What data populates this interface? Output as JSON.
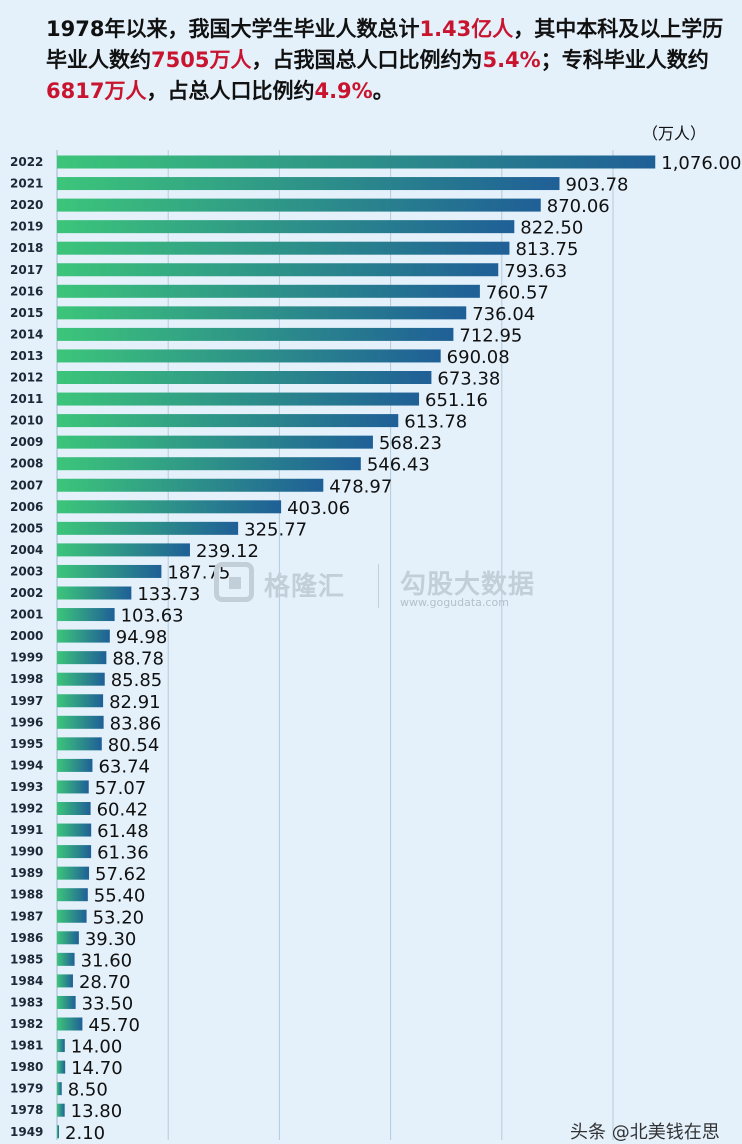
{
  "headline": {
    "p1": "1978年以来，我国大学生毕业人数总计",
    "h1": "1.43亿人",
    "p2": "，其中本科及以上学历毕业人数约",
    "h2": "7505万人",
    "p3": "，占我国总人口比例约为",
    "h3": "5.4%",
    "p4": "；专科毕业人数约",
    "h4": "6817万人",
    "p5": "，占总人口比例约",
    "h5": "4.9%",
    "p6": "。"
  },
  "colors": {
    "highlight": "#c8142e",
    "bar_start": "#3cc57a",
    "bar_end": "#1f5f97",
    "gridline": "#b4cadb",
    "background": "#e4f1fb"
  },
  "watermark": {
    "brand_cn": "格隆汇",
    "brand2_cn": "勾股大数据",
    "brand2_url": "www.gogudata.com"
  },
  "footer": {
    "text": "头条 @北美钱在思"
  },
  "chart_data": {
    "type": "bar",
    "orientation": "horizontal",
    "unit_label": "（万人）",
    "title": "",
    "xlabel": "",
    "ylabel": "",
    "xlim": [
      0,
      1100
    ],
    "grid": true,
    "categories": [
      "2022",
      "2021",
      "2020",
      "2019",
      "2018",
      "2017",
      "2016",
      "2015",
      "2014",
      "2013",
      "2012",
      "2011",
      "2010",
      "2009",
      "2008",
      "2007",
      "2006",
      "2005",
      "2004",
      "2003",
      "2002",
      "2001",
      "2000",
      "1999",
      "1998",
      "1997",
      "1996",
      "1995",
      "1994",
      "1993",
      "1992",
      "1991",
      "1990",
      "1989",
      "1988",
      "1987",
      "1986",
      "1985",
      "1984",
      "1983",
      "1982",
      "1981",
      "1980",
      "1979",
      "1978",
      "1949"
    ],
    "values": [
      1076.0,
      903.78,
      870.06,
      822.5,
      813.75,
      793.63,
      760.57,
      736.04,
      712.95,
      690.08,
      673.38,
      651.16,
      613.78,
      568.23,
      546.43,
      478.97,
      403.06,
      325.77,
      239.12,
      187.75,
      133.73,
      103.63,
      94.98,
      88.78,
      85.85,
      82.91,
      83.86,
      80.54,
      63.74,
      57.07,
      60.42,
      61.48,
      61.36,
      57.62,
      55.4,
      53.2,
      39.3,
      31.6,
      28.7,
      33.5,
      45.7,
      14.0,
      14.7,
      8.5,
      13.8,
      2.1
    ],
    "value_labels": [
      "1,076.00",
      "903.78",
      "870.06",
      "822.50",
      "813.75",
      "793.63",
      "760.57",
      "736.04",
      "712.95",
      "690.08",
      "673.38",
      "651.16",
      "613.78",
      "568.23",
      "546.43",
      "478.97",
      "403.06",
      "325.77",
      "239.12",
      "187.75",
      "133.73",
      "103.63",
      "94.98",
      "88.78",
      "85.85",
      "82.91",
      "83.86",
      "80.54",
      "63.74",
      "57.07",
      "60.42",
      "61.48",
      "61.36",
      "57.62",
      "55.40",
      "53.20",
      "39.30",
      "31.60",
      "28.70",
      "33.50",
      "45.70",
      "14.00",
      "14.70",
      "8.50",
      "13.80",
      "2.10"
    ]
  }
}
